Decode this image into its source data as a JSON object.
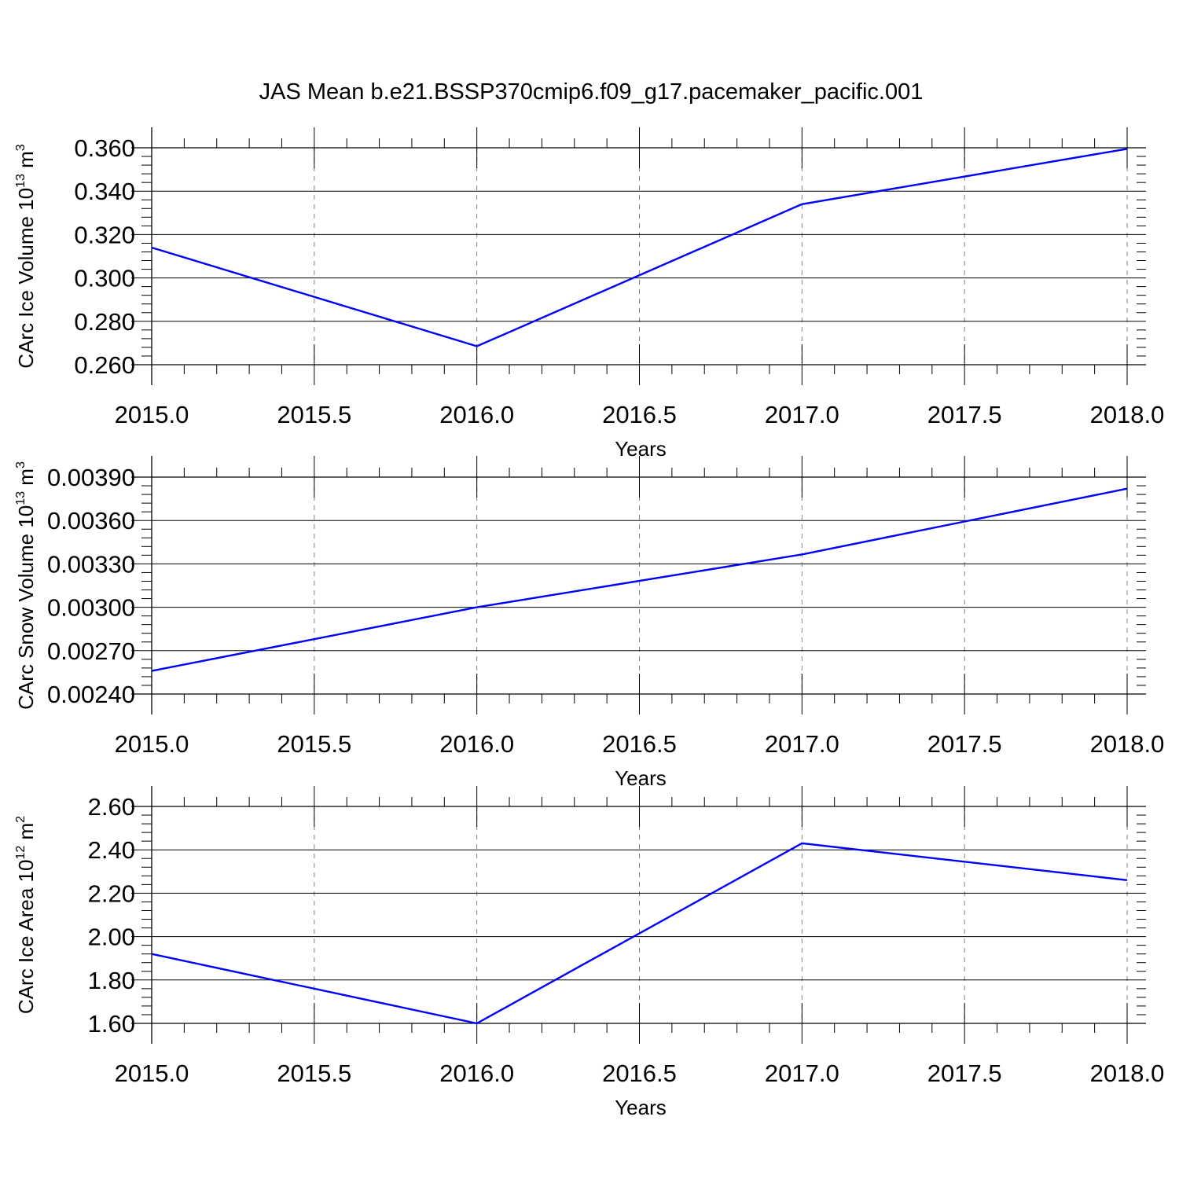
{
  "title": "JAS Mean b.e21.BSSP370cmip6.f09_g17.pacemaker_pacific.001",
  "colors": {
    "line": "#0000ff",
    "axis": "#000000",
    "grid": "#808080"
  },
  "chart_data": [
    {
      "type": "line",
      "ylabel": {
        "text": "CArc Ice Volume 10",
        "sup": "13",
        "unit": " m",
        "unit_sup": "3"
      },
      "xlabel": "Years",
      "xlim": [
        2015.0,
        2018.0
      ],
      "ylim": [
        0.26,
        0.36
      ],
      "x_ticks": [
        "2015.0",
        "2015.5",
        "2016.0",
        "2016.5",
        "2017.0",
        "2017.5",
        "2018.0"
      ],
      "y_ticks": [
        "0.260",
        "0.280",
        "0.300",
        "0.320",
        "0.340",
        "0.360"
      ],
      "grid": "vertical-dashed",
      "x": [
        2015,
        2016,
        2017,
        2018
      ],
      "values": [
        0.314,
        0.2685,
        0.334,
        0.3595
      ]
    },
    {
      "type": "line",
      "ylabel": {
        "text": "CArc Snow Volume 10",
        "sup": "13",
        "unit": " m",
        "unit_sup": "3"
      },
      "xlabel": "Years",
      "xlim": [
        2015.0,
        2018.0
      ],
      "ylim": [
        0.0024,
        0.0039
      ],
      "x_ticks": [
        "2015.0",
        "2015.5",
        "2016.0",
        "2016.5",
        "2017.0",
        "2017.5",
        "2018.0"
      ],
      "y_ticks": [
        "0.00240",
        "0.00270",
        "0.00300",
        "0.00330",
        "0.00360",
        "0.00390"
      ],
      "grid": "vertical-dashed",
      "x": [
        2015,
        2016,
        2017,
        2018
      ],
      "values": [
        0.00256,
        0.003,
        0.003365,
        0.00382
      ]
    },
    {
      "type": "line",
      "ylabel": {
        "text": "CArc Ice Area 10",
        "sup": "12",
        "unit": " m",
        "unit_sup": "2"
      },
      "xlabel": "Years",
      "xlim": [
        2015.0,
        2018.0
      ],
      "ylim": [
        1.6,
        2.6
      ],
      "x_ticks": [
        "2015.0",
        "2015.5",
        "2016.0",
        "2016.5",
        "2017.0",
        "2017.5",
        "2018.0"
      ],
      "y_ticks": [
        "1.60",
        "1.80",
        "2.00",
        "2.20",
        "2.40",
        "2.60"
      ],
      "grid": "vertical-dashed",
      "x": [
        2015,
        2016,
        2017,
        2018
      ],
      "values": [
        1.92,
        1.6,
        2.43,
        2.26
      ]
    }
  ]
}
